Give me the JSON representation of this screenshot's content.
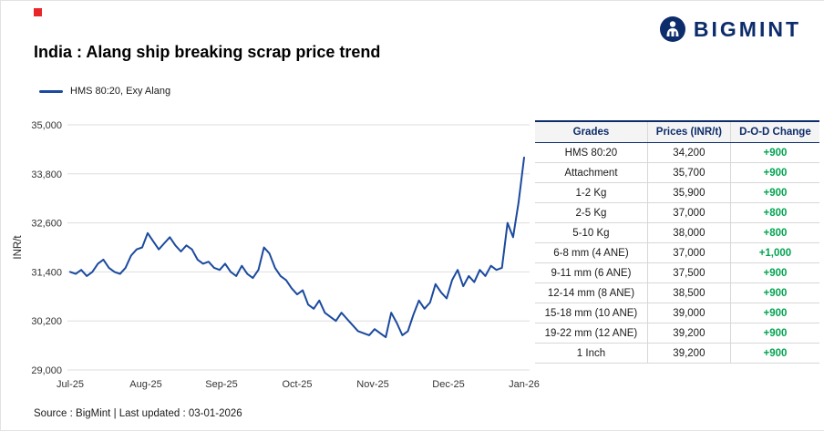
{
  "brand": {
    "logo_text": "BIGMINT",
    "navy": "#0d2c6b",
    "accent_red": "#e8262a"
  },
  "header": {
    "title": "India : Alang ship breaking scrap price trend"
  },
  "legend": {
    "label": "HMS 80:20, Exy Alang",
    "line_color": "#1b4a9e"
  },
  "chart_data": {
    "type": "line",
    "title": "India : Alang ship breaking scrap price trend",
    "ylabel": "INR/t",
    "xlabel": "",
    "ylim": [
      29000,
      35000
    ],
    "y_ticks": [
      29000,
      30200,
      31400,
      32600,
      33800,
      35000
    ],
    "y_tick_labels": [
      "29,000",
      "30,200",
      "31,400",
      "32,600",
      "33,800",
      "35,000"
    ],
    "x_tick_labels": [
      "Jul-25",
      "Aug-25",
      "Sep-25",
      "Oct-25",
      "Nov-25",
      "Dec-25",
      "Jan-26"
    ],
    "grid": "horizontal",
    "legend_position": "top-left",
    "line_color": "#1b4a9e",
    "series": [
      {
        "name": "HMS 80:20, Exy Alang",
        "values": [
          31400,
          31350,
          31450,
          31300,
          31400,
          31600,
          31700,
          31500,
          31400,
          31350,
          31500,
          31800,
          31950,
          32000,
          32350,
          32150,
          31950,
          32100,
          32250,
          32050,
          31900,
          32050,
          31950,
          31700,
          31600,
          31650,
          31500,
          31450,
          31600,
          31400,
          31300,
          31550,
          31350,
          31250,
          31450,
          32000,
          31850,
          31500,
          31300,
          31200,
          31000,
          30850,
          30950,
          30600,
          30500,
          30700,
          30400,
          30300,
          30200,
          30400,
          30250,
          30100,
          29950,
          29900,
          29850,
          30000,
          29900,
          29800,
          30400,
          30150,
          29850,
          29950,
          30350,
          30700,
          30500,
          30650,
          31100,
          30900,
          30750,
          31200,
          31450,
          31050,
          31300,
          31150,
          31450,
          31300,
          31550,
          31450,
          31500,
          32600,
          32250,
          33100,
          34200
        ]
      }
    ]
  },
  "table": {
    "headers": [
      "Grades",
      "Prices (INR/t)",
      "D-O-D Change"
    ],
    "header_color": "#0d2c6b",
    "change_color": "#00a44f",
    "rows": [
      {
        "grade": "HMS 80:20",
        "price": "34,200",
        "change": "+900"
      },
      {
        "grade": "Attachment",
        "price": "35,700",
        "change": "+900"
      },
      {
        "grade": "1-2 Kg",
        "price": "35,900",
        "change": "+900"
      },
      {
        "grade": "2-5 Kg",
        "price": "37,000",
        "change": "+800"
      },
      {
        "grade": "5-10 Kg",
        "price": "38,000",
        "change": "+800"
      },
      {
        "grade": "6-8 mm (4 ANE)",
        "price": "37,000",
        "change": "+1,000"
      },
      {
        "grade": "9-11 mm (6 ANE)",
        "price": "37,500",
        "change": "+900"
      },
      {
        "grade": "12-14 mm (8 ANE)",
        "price": "38,500",
        "change": "+900"
      },
      {
        "grade": "15-18 mm (10 ANE)",
        "price": "39,000",
        "change": "+900"
      },
      {
        "grade": "19-22 mm (12 ANE)",
        "price": "39,200",
        "change": "+900"
      },
      {
        "grade": "1 Inch",
        "price": "39,200",
        "change": "+900"
      }
    ]
  },
  "footer": {
    "source_text": "Source : BigMint | Last updated : 03-01-2026"
  }
}
